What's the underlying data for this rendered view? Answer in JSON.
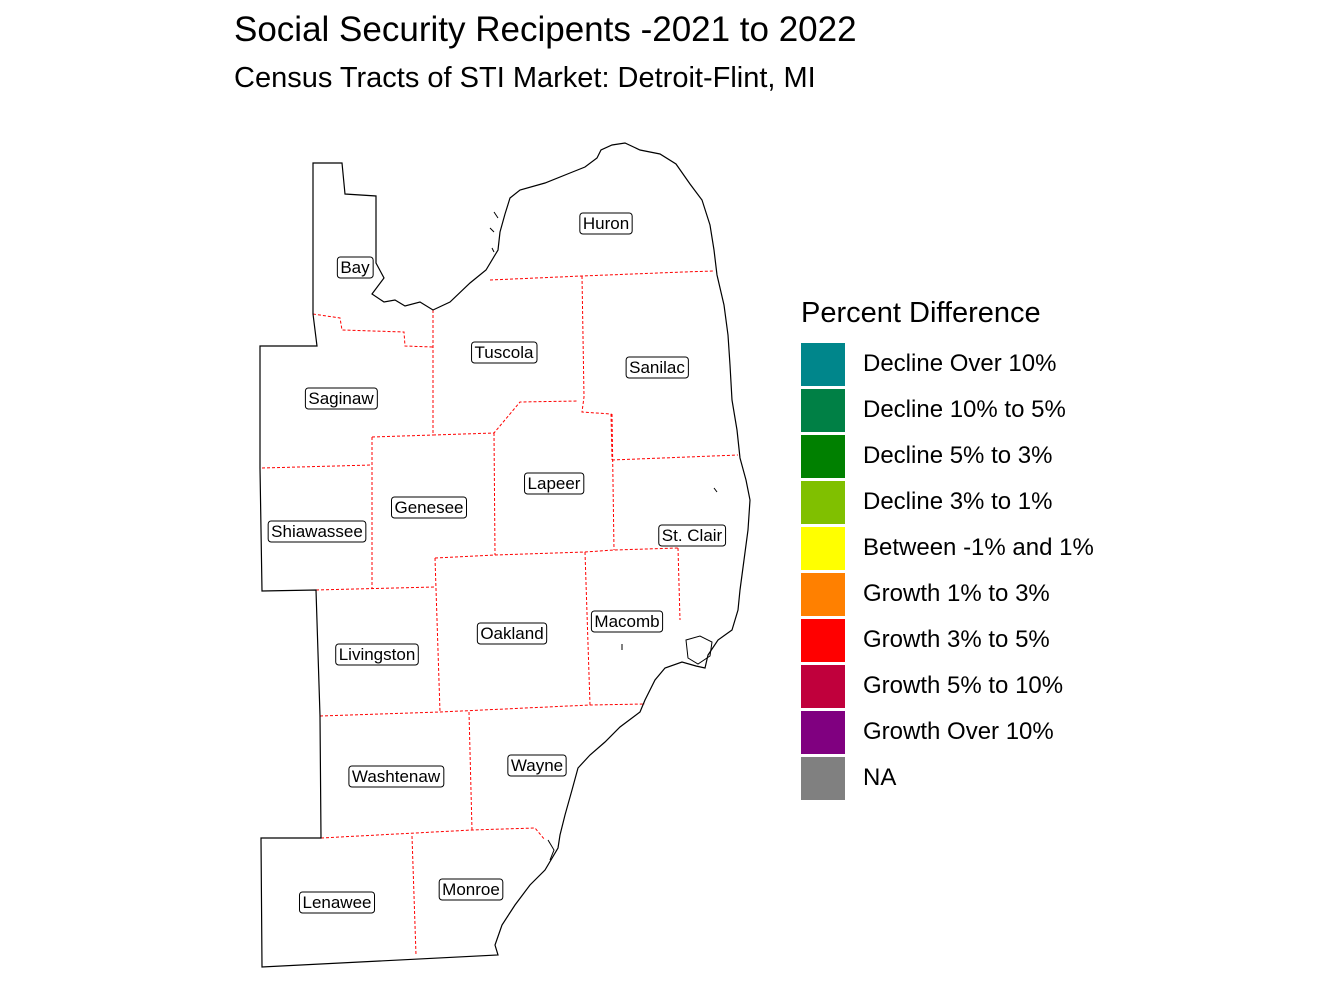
{
  "title": "Social Security Recipents -2021 to 2022",
  "subtitle": "Census Tracts of STI Market: Detroit-Flint, MI",
  "legend": {
    "title": "Percent Difference",
    "items": [
      {
        "label": "Decline Over 10%",
        "color": "#00868B"
      },
      {
        "label": "Decline 10% to 5%",
        "color": "#008045"
      },
      {
        "label": "Decline 5% to 3%",
        "color": "#008000"
      },
      {
        "label": "Decline 3% to 1%",
        "color": "#80C000"
      },
      {
        "label": "Between -1% and 1%",
        "color": "#FFFF00"
      },
      {
        "label": "Growth 1% to 3%",
        "color": "#FF8000"
      },
      {
        "label": "Growth 3% to 5%",
        "color": "#FF0000"
      },
      {
        "label": "Growth 5% to 10%",
        "color": "#C0003C"
      },
      {
        "label": "Growth Over 10%",
        "color": "#800080"
      },
      {
        "label": "NA",
        "color": "#808080"
      }
    ]
  },
  "counties": [
    "Huron",
    "Bay",
    "Tuscola",
    "Sanilac",
    "Saginaw",
    "Lapeer",
    "Genesee",
    "Shiawassee",
    "St. Clair",
    "Macomb",
    "Oakland",
    "Livingston",
    "Wayne",
    "Washtenaw",
    "Monroe",
    "Lenawee"
  ],
  "colors": {
    "outline": "#000000",
    "county_border": "#FF0000"
  }
}
